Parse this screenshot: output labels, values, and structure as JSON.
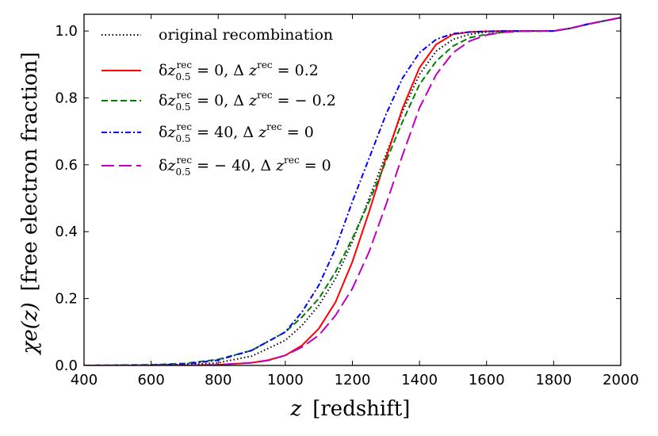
{
  "chart_data": {
    "type": "line",
    "title": "",
    "xlabel": "z  [redshift]",
    "xlabel_sym": "z",
    "xlabel_text": "[redshift]",
    "ylabel": "χ_e(z)  [free electron fraction]",
    "ylabel_sym": "χe(z)",
    "ylabel_text": "[free electron fraction]",
    "xlim": [
      400,
      2000
    ],
    "ylim": [
      0.0,
      1.05
    ],
    "xticks": [
      400,
      600,
      800,
      1000,
      1200,
      1400,
      1600,
      1800,
      2000
    ],
    "xtick_labels": [
      "400",
      "600",
      "800",
      "1000",
      "1200",
      "1400",
      "1600",
      "1800",
      "2000"
    ],
    "yticks": [
      0.0,
      0.2,
      0.4,
      0.6,
      0.8,
      1.0
    ],
    "ytick_labels": [
      "0.0",
      "0.2",
      "0.4",
      "0.6",
      "0.8",
      "1.0"
    ],
    "grid": false,
    "legend_position": "top-left",
    "series": [
      {
        "name": "original recombination",
        "color": "#000000",
        "style": "dotted",
        "x": [
          400,
          600,
          700,
          800,
          900,
          1000,
          1050,
          1100,
          1150,
          1200,
          1250,
          1300,
          1350,
          1400,
          1450,
          1500,
          1550,
          1600,
          1650,
          1700,
          1750,
          1800,
          1850,
          1900,
          1950,
          2000
        ],
        "y": [
          0.0,
          0.0005,
          0.002,
          0.008,
          0.028,
          0.075,
          0.12,
          0.18,
          0.26,
          0.37,
          0.5,
          0.63,
          0.76,
          0.87,
          0.94,
          0.975,
          0.99,
          0.997,
          0.999,
          1.0,
          1.0,
          1.0,
          1.008,
          1.02,
          1.03,
          1.04
        ]
      },
      {
        "name": "δz_0.5^rec = 0,  Δz^rec = 0.2",
        "label_parts": [
          "δ",
          "z",
          "0.5",
          "rec",
          "= 0,   Δ",
          "z",
          "rec",
          "= 0.2"
        ],
        "color": "#ff0000",
        "style": "solid",
        "x": [
          400,
          600,
          700,
          800,
          900,
          950,
          1000,
          1050,
          1100,
          1150,
          1200,
          1250,
          1300,
          1350,
          1400,
          1450,
          1500,
          1550,
          1600,
          1650,
          1700,
          1750,
          1800,
          1850,
          1900,
          1950,
          2000
        ],
        "y": [
          0.0,
          0.0,
          0.0005,
          0.002,
          0.008,
          0.016,
          0.03,
          0.06,
          0.11,
          0.19,
          0.31,
          0.46,
          0.62,
          0.77,
          0.89,
          0.96,
          0.99,
          0.997,
          0.999,
          1.0,
          1.0,
          1.0,
          1.0,
          1.008,
          1.02,
          1.03,
          1.04
        ]
      },
      {
        "name": "δz_0.5^rec = 0,  Δz^rec = −0.2",
        "label_parts": [
          "δ",
          "z",
          "0.5",
          "rec",
          "= 0,   Δ",
          "z",
          "rec",
          "= − 0.2"
        ],
        "color": "#008000",
        "style": "dashed",
        "x": [
          400,
          600,
          700,
          800,
          900,
          1000,
          1050,
          1100,
          1150,
          1200,
          1250,
          1300,
          1350,
          1400,
          1450,
          1500,
          1550,
          1600,
          1650,
          1700,
          1750,
          1800,
          1850,
          1900,
          1950,
          2000
        ],
        "y": [
          0.0,
          0.002,
          0.006,
          0.018,
          0.045,
          0.1,
          0.145,
          0.2,
          0.28,
          0.38,
          0.49,
          0.61,
          0.73,
          0.84,
          0.91,
          0.955,
          0.98,
          0.99,
          0.996,
          0.999,
          1.0,
          1.0,
          1.008,
          1.02,
          1.03,
          1.04
        ]
      },
      {
        "name": "δz_0.5^rec = 40,  Δz^rec = 0",
        "label_parts": [
          "δ",
          "z",
          "0.5",
          "rec",
          "= 40,   Δ",
          "z",
          "rec",
          "= 0"
        ],
        "color": "#0000ff",
        "style": "dashdot",
        "x": [
          400,
          600,
          700,
          800,
          900,
          1000,
          1050,
          1100,
          1150,
          1200,
          1250,
          1300,
          1350,
          1400,
          1450,
          1500,
          1550,
          1600,
          1650,
          1700,
          1750,
          1800,
          1850,
          1900,
          1950,
          2000
        ],
        "y": [
          0.0,
          0.001,
          0.004,
          0.016,
          0.045,
          0.1,
          0.16,
          0.24,
          0.35,
          0.49,
          0.62,
          0.75,
          0.86,
          0.935,
          0.975,
          0.992,
          0.997,
          0.999,
          1.0,
          1.0,
          1.0,
          1.0,
          1.008,
          1.02,
          1.03,
          1.04
        ]
      },
      {
        "name": "δz_0.5^rec = −40,  Δz^rec = 0",
        "label_parts": [
          "δ",
          "z",
          "0.5",
          "rec",
          "= − 40,   Δ",
          "z",
          "rec",
          "= 0"
        ],
        "color": "#bf00bf",
        "style": "longdash",
        "x": [
          400,
          600,
          700,
          800,
          900,
          950,
          1000,
          1050,
          1100,
          1150,
          1200,
          1250,
          1300,
          1350,
          1400,
          1450,
          1500,
          1550,
          1600,
          1650,
          1700,
          1750,
          1800,
          1850,
          1900,
          1950,
          2000
        ],
        "y": [
          0.0,
          0.0,
          0.0005,
          0.002,
          0.008,
          0.015,
          0.03,
          0.055,
          0.09,
          0.15,
          0.23,
          0.34,
          0.48,
          0.63,
          0.77,
          0.87,
          0.935,
          0.97,
          0.988,
          0.996,
          0.999,
          1.0,
          1.0,
          1.008,
          1.02,
          1.03,
          1.04
        ]
      }
    ]
  }
}
